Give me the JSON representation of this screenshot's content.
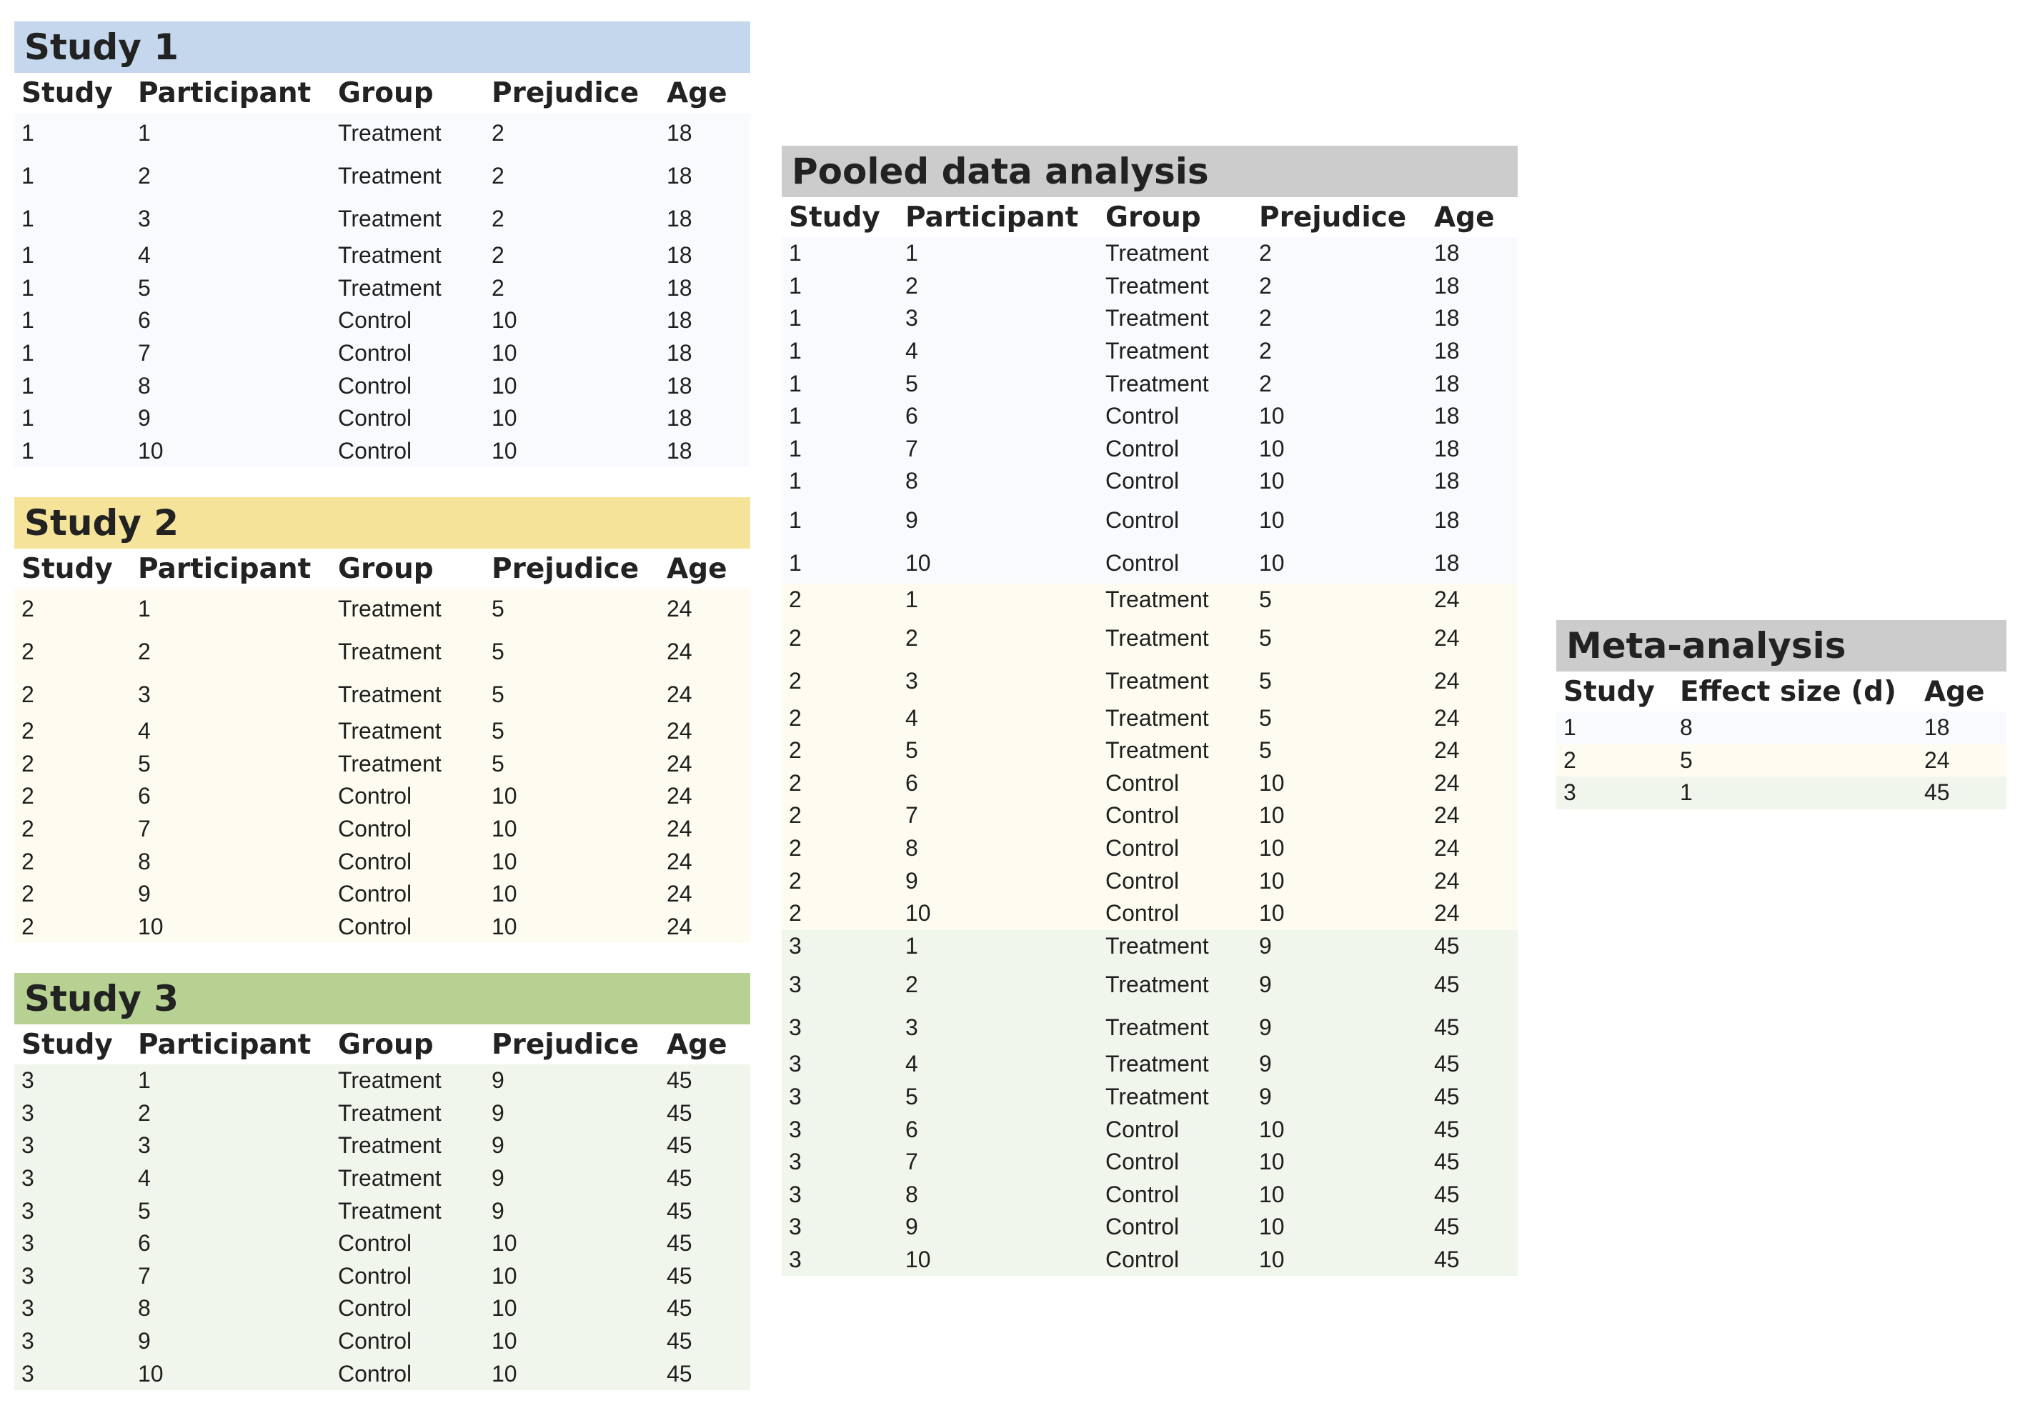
{
  "colors": {
    "study1_banner": "#c5d7ed",
    "study2_banner": "#f6e39a",
    "study3_banner": "#b7d192",
    "grey_banner": "#cccccc",
    "study1_row": "#f8fafd",
    "study2_row": "#fefcf1",
    "study3_row": "#f1f6ec"
  },
  "columns": [
    "Study",
    "Participant",
    "Group",
    "Prejudice",
    "Age"
  ],
  "studies": [
    {
      "title": "Study 1",
      "rows": [
        [
          "1",
          "1",
          "Treatment",
          "2",
          "18"
        ],
        [
          "1",
          "2",
          "Treatment",
          "2",
          "18"
        ],
        [
          "1",
          "3",
          "Treatment",
          "2",
          "18"
        ],
        [
          "1",
          "4",
          "Treatment",
          "2",
          "18"
        ],
        [
          "1",
          "5",
          "Treatment",
          "2",
          "18"
        ],
        [
          "1",
          "6",
          "Control",
          "10",
          "18"
        ],
        [
          "1",
          "7",
          "Control",
          "10",
          "18"
        ],
        [
          "1",
          "8",
          "Control",
          "10",
          "18"
        ],
        [
          "1",
          "9",
          "Control",
          "10",
          "18"
        ],
        [
          "1",
          "10",
          "Control",
          "10",
          "18"
        ]
      ]
    },
    {
      "title": "Study 2",
      "rows": [
        [
          "2",
          "1",
          "Treatment",
          "5",
          "24"
        ],
        [
          "2",
          "2",
          "Treatment",
          "5",
          "24"
        ],
        [
          "2",
          "3",
          "Treatment",
          "5",
          "24"
        ],
        [
          "2",
          "4",
          "Treatment",
          "5",
          "24"
        ],
        [
          "2",
          "5",
          "Treatment",
          "5",
          "24"
        ],
        [
          "2",
          "6",
          "Control",
          "10",
          "24"
        ],
        [
          "2",
          "7",
          "Control",
          "10",
          "24"
        ],
        [
          "2",
          "8",
          "Control",
          "10",
          "24"
        ],
        [
          "2",
          "9",
          "Control",
          "10",
          "24"
        ],
        [
          "2",
          "10",
          "Control",
          "10",
          "24"
        ]
      ]
    },
    {
      "title": "Study 3",
      "rows": [
        [
          "3",
          "1",
          "Treatment",
          "9",
          "45"
        ],
        [
          "3",
          "2",
          "Treatment",
          "9",
          "45"
        ],
        [
          "3",
          "3",
          "Treatment",
          "9",
          "45"
        ],
        [
          "3",
          "4",
          "Treatment",
          "9",
          "45"
        ],
        [
          "3",
          "5",
          "Treatment",
          "9",
          "45"
        ],
        [
          "3",
          "6",
          "Control",
          "10",
          "45"
        ],
        [
          "3",
          "7",
          "Control",
          "10",
          "45"
        ],
        [
          "3",
          "8",
          "Control",
          "10",
          "45"
        ],
        [
          "3",
          "9",
          "Control",
          "10",
          "45"
        ],
        [
          "3",
          "10",
          "Control",
          "10",
          "45"
        ]
      ]
    }
  ],
  "pooled": {
    "title": "Pooled data analysis",
    "columns": [
      "Study",
      "Participant",
      "Group",
      "Prejudice",
      "Age"
    ]
  },
  "meta": {
    "title": "Meta-analysis",
    "columns": [
      "Study",
      "Effect size (d)",
      "Age"
    ],
    "rows": [
      [
        "1",
        "8",
        "18"
      ],
      [
        "2",
        "5",
        "24"
      ],
      [
        "3",
        "1",
        "45"
      ]
    ]
  }
}
